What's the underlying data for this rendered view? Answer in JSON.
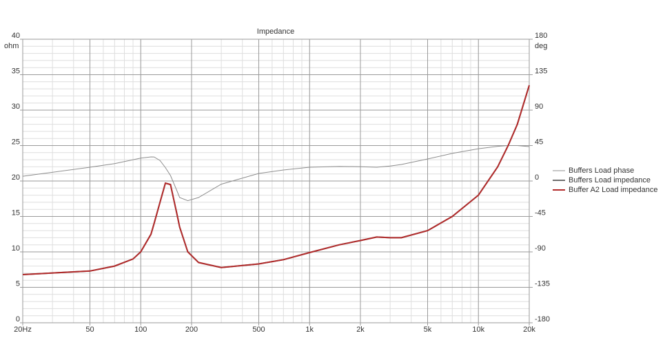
{
  "chart_data": {
    "type": "line",
    "title": "Impedance",
    "ylabel": "ohm",
    "y2label": "deg",
    "xscale": "log",
    "grid": true,
    "minor_grid": true,
    "legend": "right",
    "x": [
      20,
      50,
      70,
      90,
      100,
      115,
      120,
      130,
      140,
      150,
      165,
      170,
      190,
      220,
      300,
      500,
      700,
      1000,
      1500,
      2000,
      2500,
      3000,
      3500,
      5000,
      7000,
      10000,
      13000,
      15000,
      17000,
      20000
    ],
    "xlim": [
      20,
      20000
    ],
    "xticks": [
      {
        "value": 20,
        "label": "20Hz"
      },
      50,
      100,
      200,
      500,
      {
        "value": 1000,
        "label": "1k"
      },
      {
        "value": 2000,
        "label": "2k"
      },
      {
        "value": 5000,
        "label": "5k"
      },
      {
        "value": 10000,
        "label": "10k"
      },
      {
        "value": 20000,
        "label": "20k"
      }
    ],
    "ylim": [
      0,
      40
    ],
    "yticks": [
      0,
      5,
      10,
      15,
      20,
      25,
      30,
      35,
      40
    ],
    "y2lim": [
      -180,
      180
    ],
    "y2ticks": [
      -180,
      -135,
      -90,
      -45,
      0,
      45,
      90,
      135,
      180
    ],
    "series": [
      {
        "name": "Buffers Load phase",
        "color": "#8c8c8c",
        "axis": "y2",
        "values": [
          6,
          17.5,
          22,
          27,
          29,
          30.6,
          30.5,
          26,
          17,
          7,
          -14,
          -21,
          -25,
          -21,
          -4,
          9.6,
          14,
          17.5,
          18.4,
          18.2,
          17.5,
          19,
          21,
          28,
          35,
          41,
          44,
          45,
          45,
          43.7
        ]
      },
      {
        "name": "Buffers Load impedance",
        "color": "#6e6e6e",
        "values": [
          6.8,
          7.3,
          8,
          9,
          10,
          12.5,
          14,
          17,
          19.7,
          19.5,
          15,
          13.5,
          10,
          8.5,
          7.8,
          8.3,
          8.9,
          9.9,
          11,
          11.6,
          12.1,
          12.0,
          12.0,
          13.0,
          15,
          18,
          22,
          25,
          28,
          33.5
        ]
      },
      {
        "name": "Buffer A2 Load impedance",
        "color": "#b22a2a",
        "values": [
          6.8,
          7.3,
          8,
          9,
          10,
          12.5,
          14,
          17,
          19.7,
          19.5,
          15,
          13.5,
          10,
          8.5,
          7.8,
          8.3,
          8.9,
          9.9,
          11,
          11.6,
          12.1,
          12.0,
          12.0,
          13.0,
          15,
          18,
          22,
          25,
          28,
          33.5
        ]
      }
    ]
  }
}
